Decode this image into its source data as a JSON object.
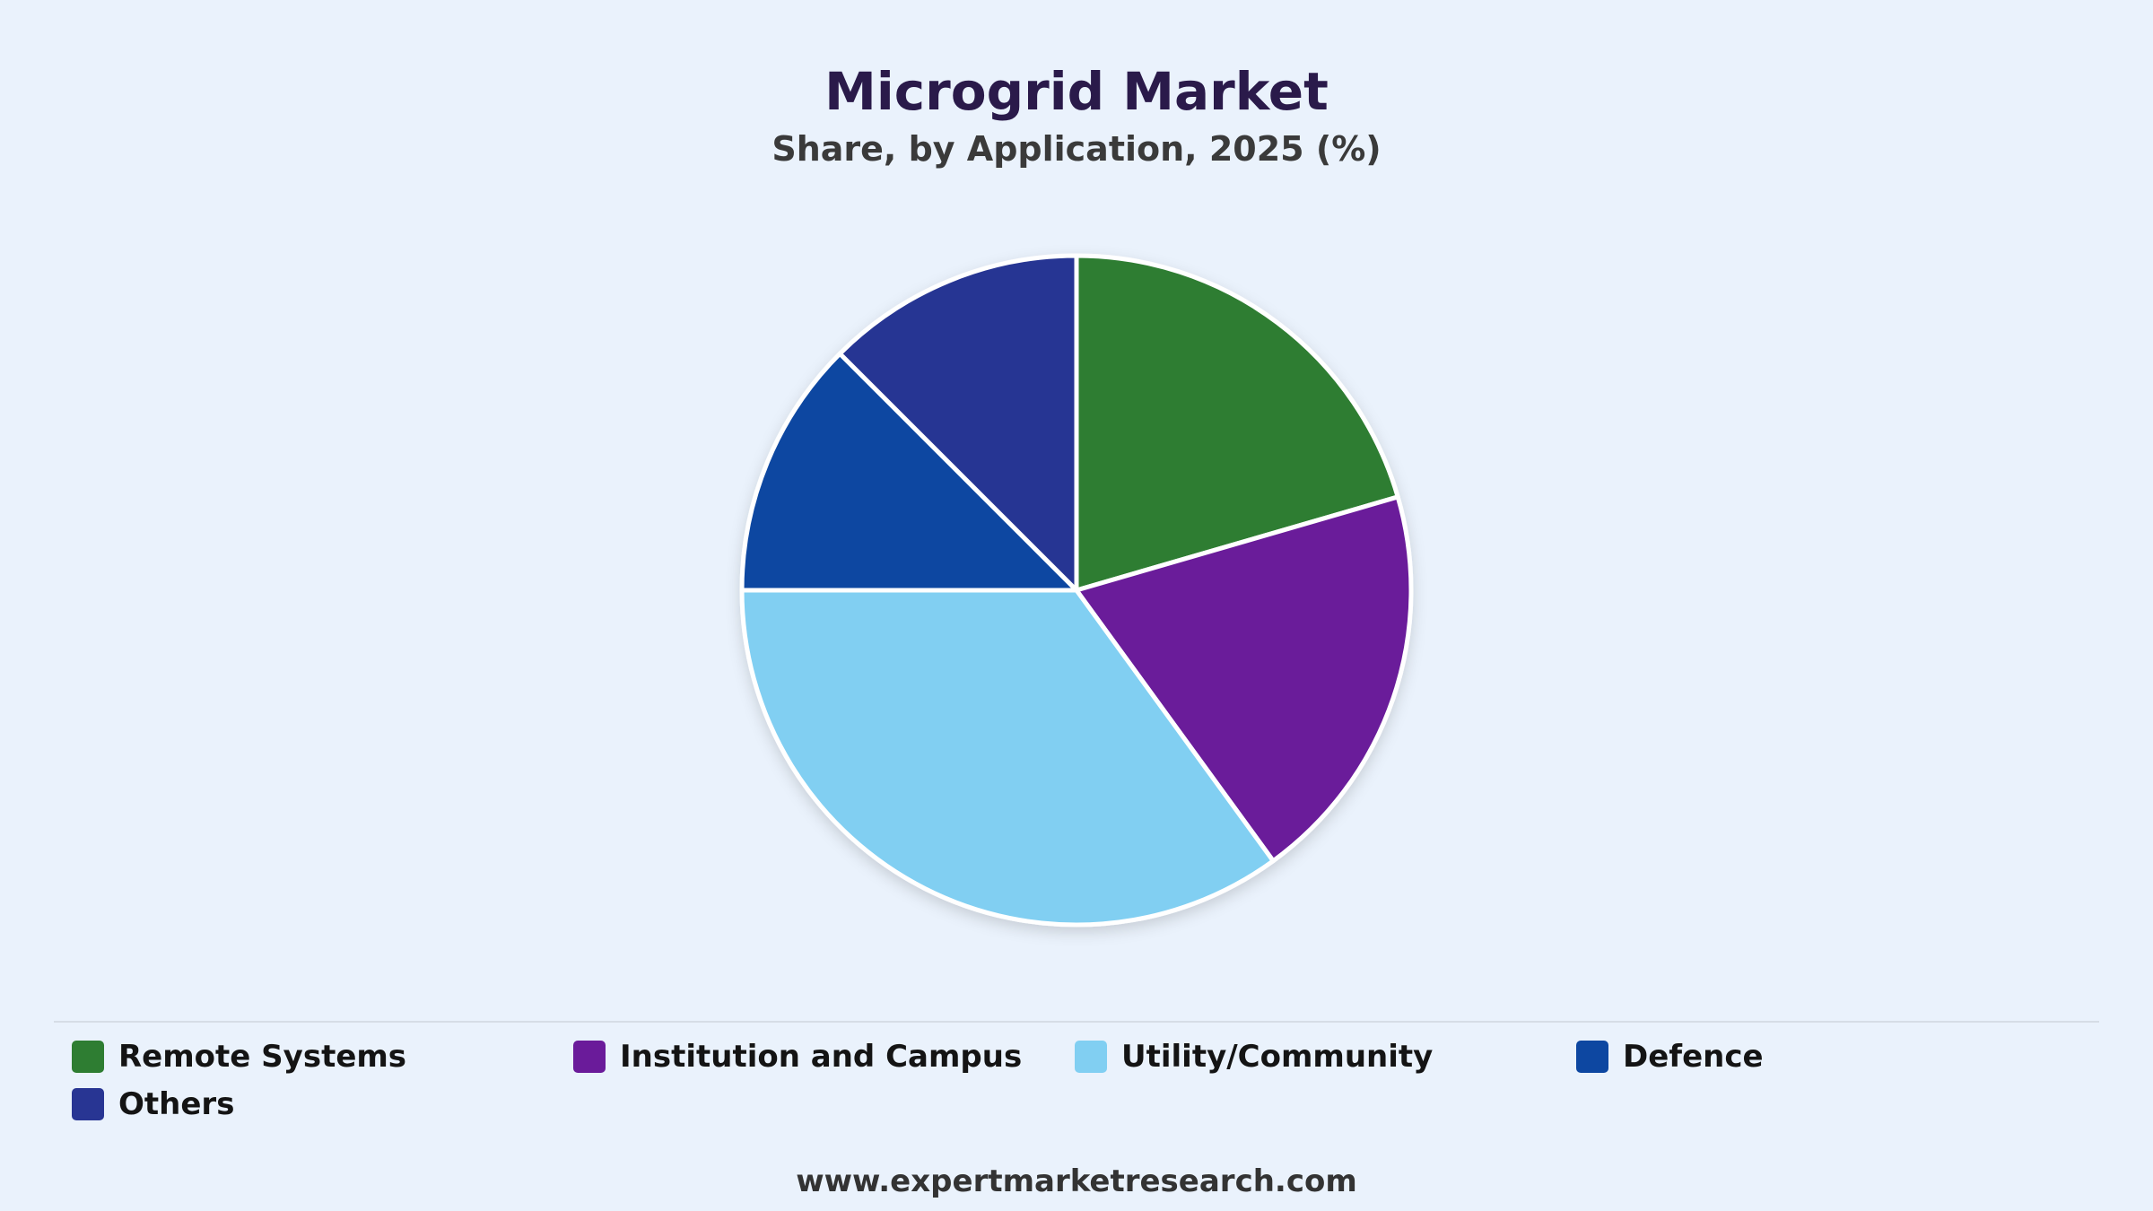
{
  "header": {
    "title": "Microgrid Market",
    "subtitle": "Share, by Application, 2025 (%)"
  },
  "chart_data": {
    "type": "pie",
    "title": "Microgrid Market",
    "subtitle": "Share, by Application, 2025 (%)",
    "categories": [
      "Remote Systems",
      "Institution and Campus",
      "Utility/Community",
      "Defence",
      "Others"
    ],
    "values": [
      20.5,
      19.5,
      35,
      12.5,
      12.5
    ],
    "colors": [
      "#2e7d32",
      "#6a1b9a",
      "#81cff2",
      "#0d47a1",
      "#283593"
    ],
    "start_angle_deg": 0,
    "direction": "clockwise",
    "legend_position": "bottom"
  },
  "footer": {
    "source": "www.expertmarketresearch.com"
  }
}
